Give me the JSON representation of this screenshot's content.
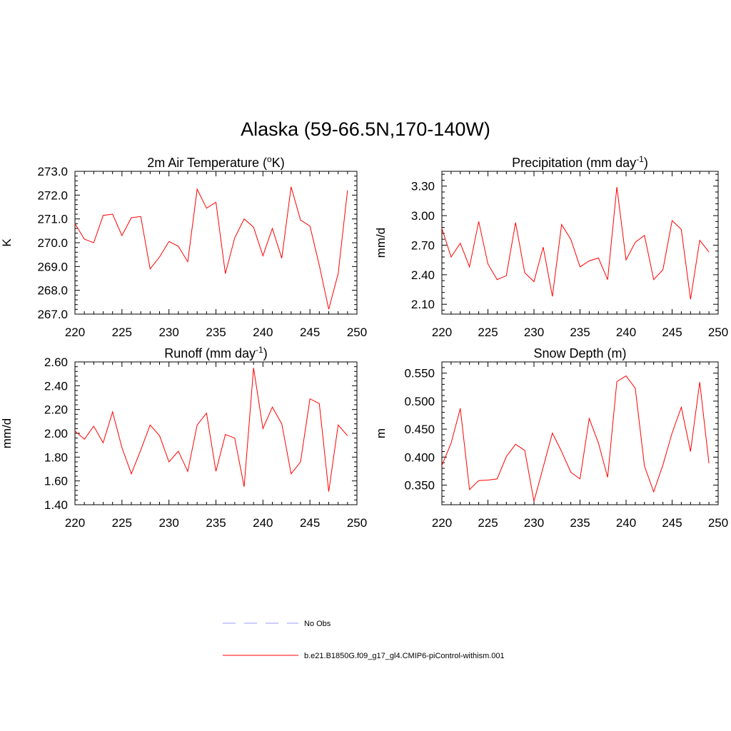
{
  "figure": {
    "title": "Alaska (59-66.5N,170-140W)"
  },
  "colors": {
    "model_line": "#ff0000",
    "obs_line": "#9999ff"
  },
  "legend": {
    "entries": [
      {
        "label": "No Obs",
        "style": "dashed",
        "color": "#9999ff"
      },
      {
        "label": "b.e21.B1850G.f09_g17_gl4.CMIP6-piControl-withism.001",
        "style": "solid",
        "color": "#ff0000"
      }
    ]
  },
  "chart_data": [
    {
      "type": "line",
      "title": "2m Air Temperature (°K)",
      "title_main": "2m Air Temperature (",
      "title_sup": "o",
      "title_tail": "K)",
      "ylabel": "K",
      "xlim": [
        220,
        250
      ],
      "ylim": [
        267.0,
        273.0
      ],
      "xticks": [
        220,
        225,
        230,
        235,
        240,
        245,
        250
      ],
      "yticks": [
        "267.0",
        "268.0",
        "269.0",
        "270.0",
        "271.0",
        "272.0",
        "273.0"
      ],
      "grid": false,
      "x": [
        220,
        221,
        222,
        223,
        224,
        225,
        226,
        227,
        228,
        229,
        230,
        231,
        232,
        233,
        234,
        235,
        236,
        237,
        238,
        239,
        240,
        241,
        242,
        243,
        244,
        245,
        246,
        247,
        248,
        249
      ],
      "series": [
        {
          "values": [
            270.8,
            270.15,
            270.0,
            271.15,
            271.2,
            270.3,
            271.05,
            271.1,
            268.9,
            269.4,
            270.05,
            269.85,
            269.2,
            272.25,
            271.45,
            271.7,
            268.7,
            270.2,
            271.0,
            270.65,
            269.45,
            270.6,
            269.35,
            272.35,
            270.95,
            270.7,
            269.05,
            267.2,
            268.7,
            272.2
          ]
        }
      ]
    },
    {
      "type": "line",
      "title": "Precipitation (mm day-1)",
      "title_main": "Precipitation (mm day",
      "title_sup": "-1",
      "title_tail": ")",
      "ylabel": "mm/d",
      "xlim": [
        220,
        250
      ],
      "ylim": [
        2.0,
        3.45
      ],
      "xticks": [
        220,
        225,
        230,
        235,
        240,
        245,
        250
      ],
      "yticks": [
        "2.10",
        "2.40",
        "2.70",
        "3.00",
        "3.30"
      ],
      "grid": false,
      "x": [
        220,
        221,
        222,
        223,
        224,
        225,
        226,
        227,
        228,
        229,
        230,
        231,
        232,
        233,
        234,
        235,
        236,
        237,
        238,
        239,
        240,
        241,
        242,
        243,
        244,
        245,
        246,
        247,
        248,
        249
      ],
      "series": [
        {
          "values": [
            2.87,
            2.58,
            2.72,
            2.48,
            2.94,
            2.51,
            2.35,
            2.39,
            2.93,
            2.42,
            2.33,
            2.68,
            2.18,
            2.91,
            2.76,
            2.48,
            2.54,
            2.57,
            2.35,
            3.29,
            2.55,
            2.73,
            2.8,
            2.35,
            2.45,
            2.95,
            2.86,
            2.15,
            2.75,
            2.63
          ]
        }
      ]
    },
    {
      "type": "line",
      "title": "Runoff (mm day-1)",
      "title_main": "Runoff (mm day",
      "title_sup": "-1",
      "title_tail": ")",
      "ylabel": "mm/d",
      "xlim": [
        220,
        250
      ],
      "ylim": [
        1.4,
        2.6
      ],
      "xticks": [
        220,
        225,
        230,
        235,
        240,
        245,
        250
      ],
      "yticks": [
        "1.40",
        "1.60",
        "1.80",
        "2.00",
        "2.20",
        "2.40",
        "2.60"
      ],
      "grid": false,
      "x": [
        220,
        221,
        222,
        223,
        224,
        225,
        226,
        227,
        228,
        229,
        230,
        231,
        232,
        233,
        234,
        235,
        236,
        237,
        238,
        239,
        240,
        241,
        242,
        243,
        244,
        245,
        246,
        247,
        248,
        249
      ],
      "series": [
        {
          "values": [
            2.02,
            1.95,
            2.06,
            1.92,
            2.18,
            1.88,
            1.66,
            1.86,
            2.07,
            1.98,
            1.76,
            1.85,
            1.68,
            2.07,
            2.17,
            1.68,
            1.99,
            1.96,
            1.55,
            2.55,
            2.04,
            2.22,
            2.08,
            1.66,
            1.76,
            2.29,
            2.25,
            1.51,
            2.07,
            1.98
          ]
        }
      ]
    },
    {
      "type": "line",
      "title": "Snow Depth (m)",
      "title_main": "Snow Depth (m)",
      "title_sup": "",
      "title_tail": "",
      "ylabel": "m",
      "xlim": [
        220,
        250
      ],
      "ylim": [
        0.315,
        0.57
      ],
      "xticks": [
        220,
        225,
        230,
        235,
        240,
        245,
        250
      ],
      "yticks": [
        "0.350",
        "0.400",
        "0.450",
        "0.500",
        "0.550"
      ],
      "grid": false,
      "x": [
        220,
        221,
        222,
        223,
        224,
        225,
        226,
        227,
        228,
        229,
        230,
        231,
        232,
        233,
        234,
        235,
        236,
        237,
        238,
        239,
        240,
        241,
        242,
        243,
        244,
        245,
        246,
        247,
        248,
        249
      ],
      "series": [
        {
          "values": [
            0.385,
            0.425,
            0.487,
            0.342,
            0.358,
            0.359,
            0.361,
            0.401,
            0.423,
            0.412,
            0.321,
            0.382,
            0.443,
            0.41,
            0.373,
            0.361,
            0.469,
            0.425,
            0.364,
            0.535,
            0.545,
            0.523,
            0.384,
            0.338,
            0.386,
            0.443,
            0.489,
            0.41,
            0.534,
            0.389
          ]
        }
      ]
    }
  ]
}
